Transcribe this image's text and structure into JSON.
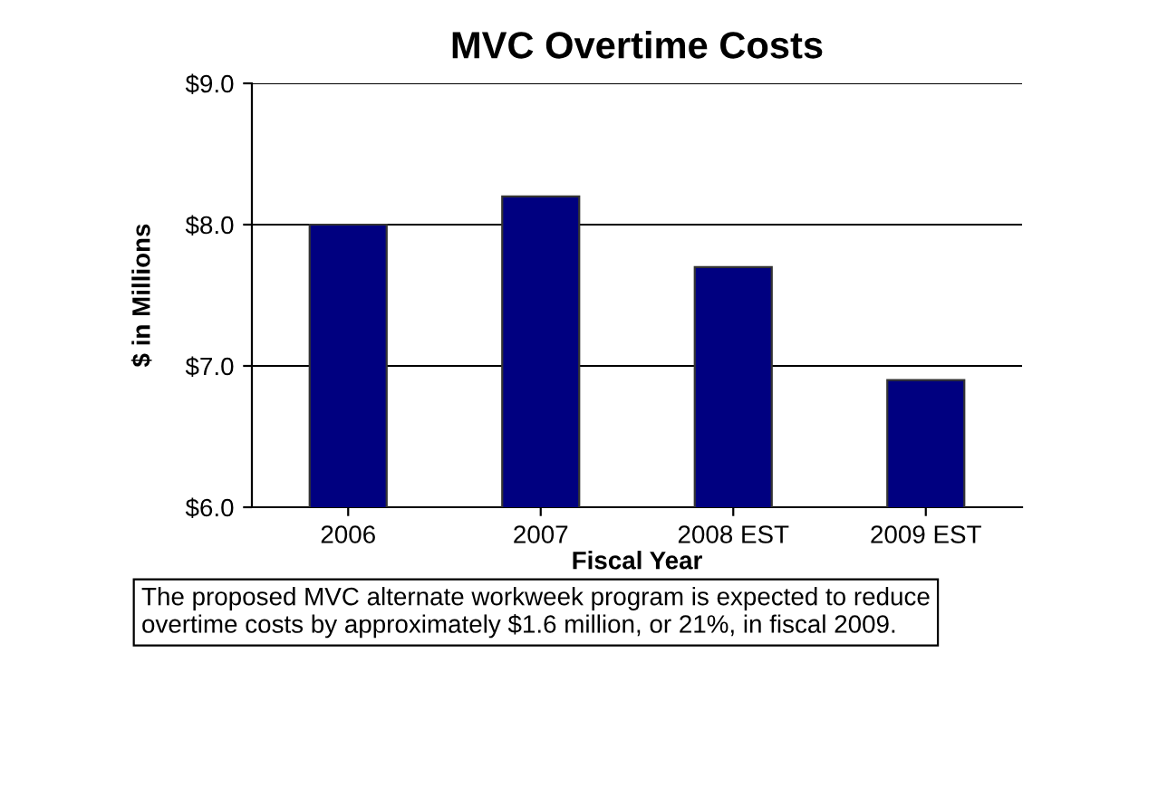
{
  "chart_data": {
    "type": "bar",
    "title": "MVC Overtime Costs",
    "xlabel": "Fiscal Year",
    "ylabel": "$ in Millions",
    "categories": [
      "2006",
      "2007",
      "2008 EST",
      "2009 EST"
    ],
    "values": [
      8.0,
      8.2,
      7.7,
      6.9
    ],
    "color": "#000080",
    "ylim": [
      6.0,
      9.0
    ],
    "yticks": [
      {
        "value": 6.0,
        "label": "$6.0"
      },
      {
        "value": 7.0,
        "label": "$7.0"
      },
      {
        "value": 8.0,
        "label": "$8.0"
      },
      {
        "value": 9.0,
        "label": "$9.0"
      }
    ],
    "grid": "y",
    "annotations": [
      "The proposed MVC alternate workweek program is expected to reduce overtime costs by approximately $1.6 million, or 21%, in fiscal 2009."
    ]
  }
}
